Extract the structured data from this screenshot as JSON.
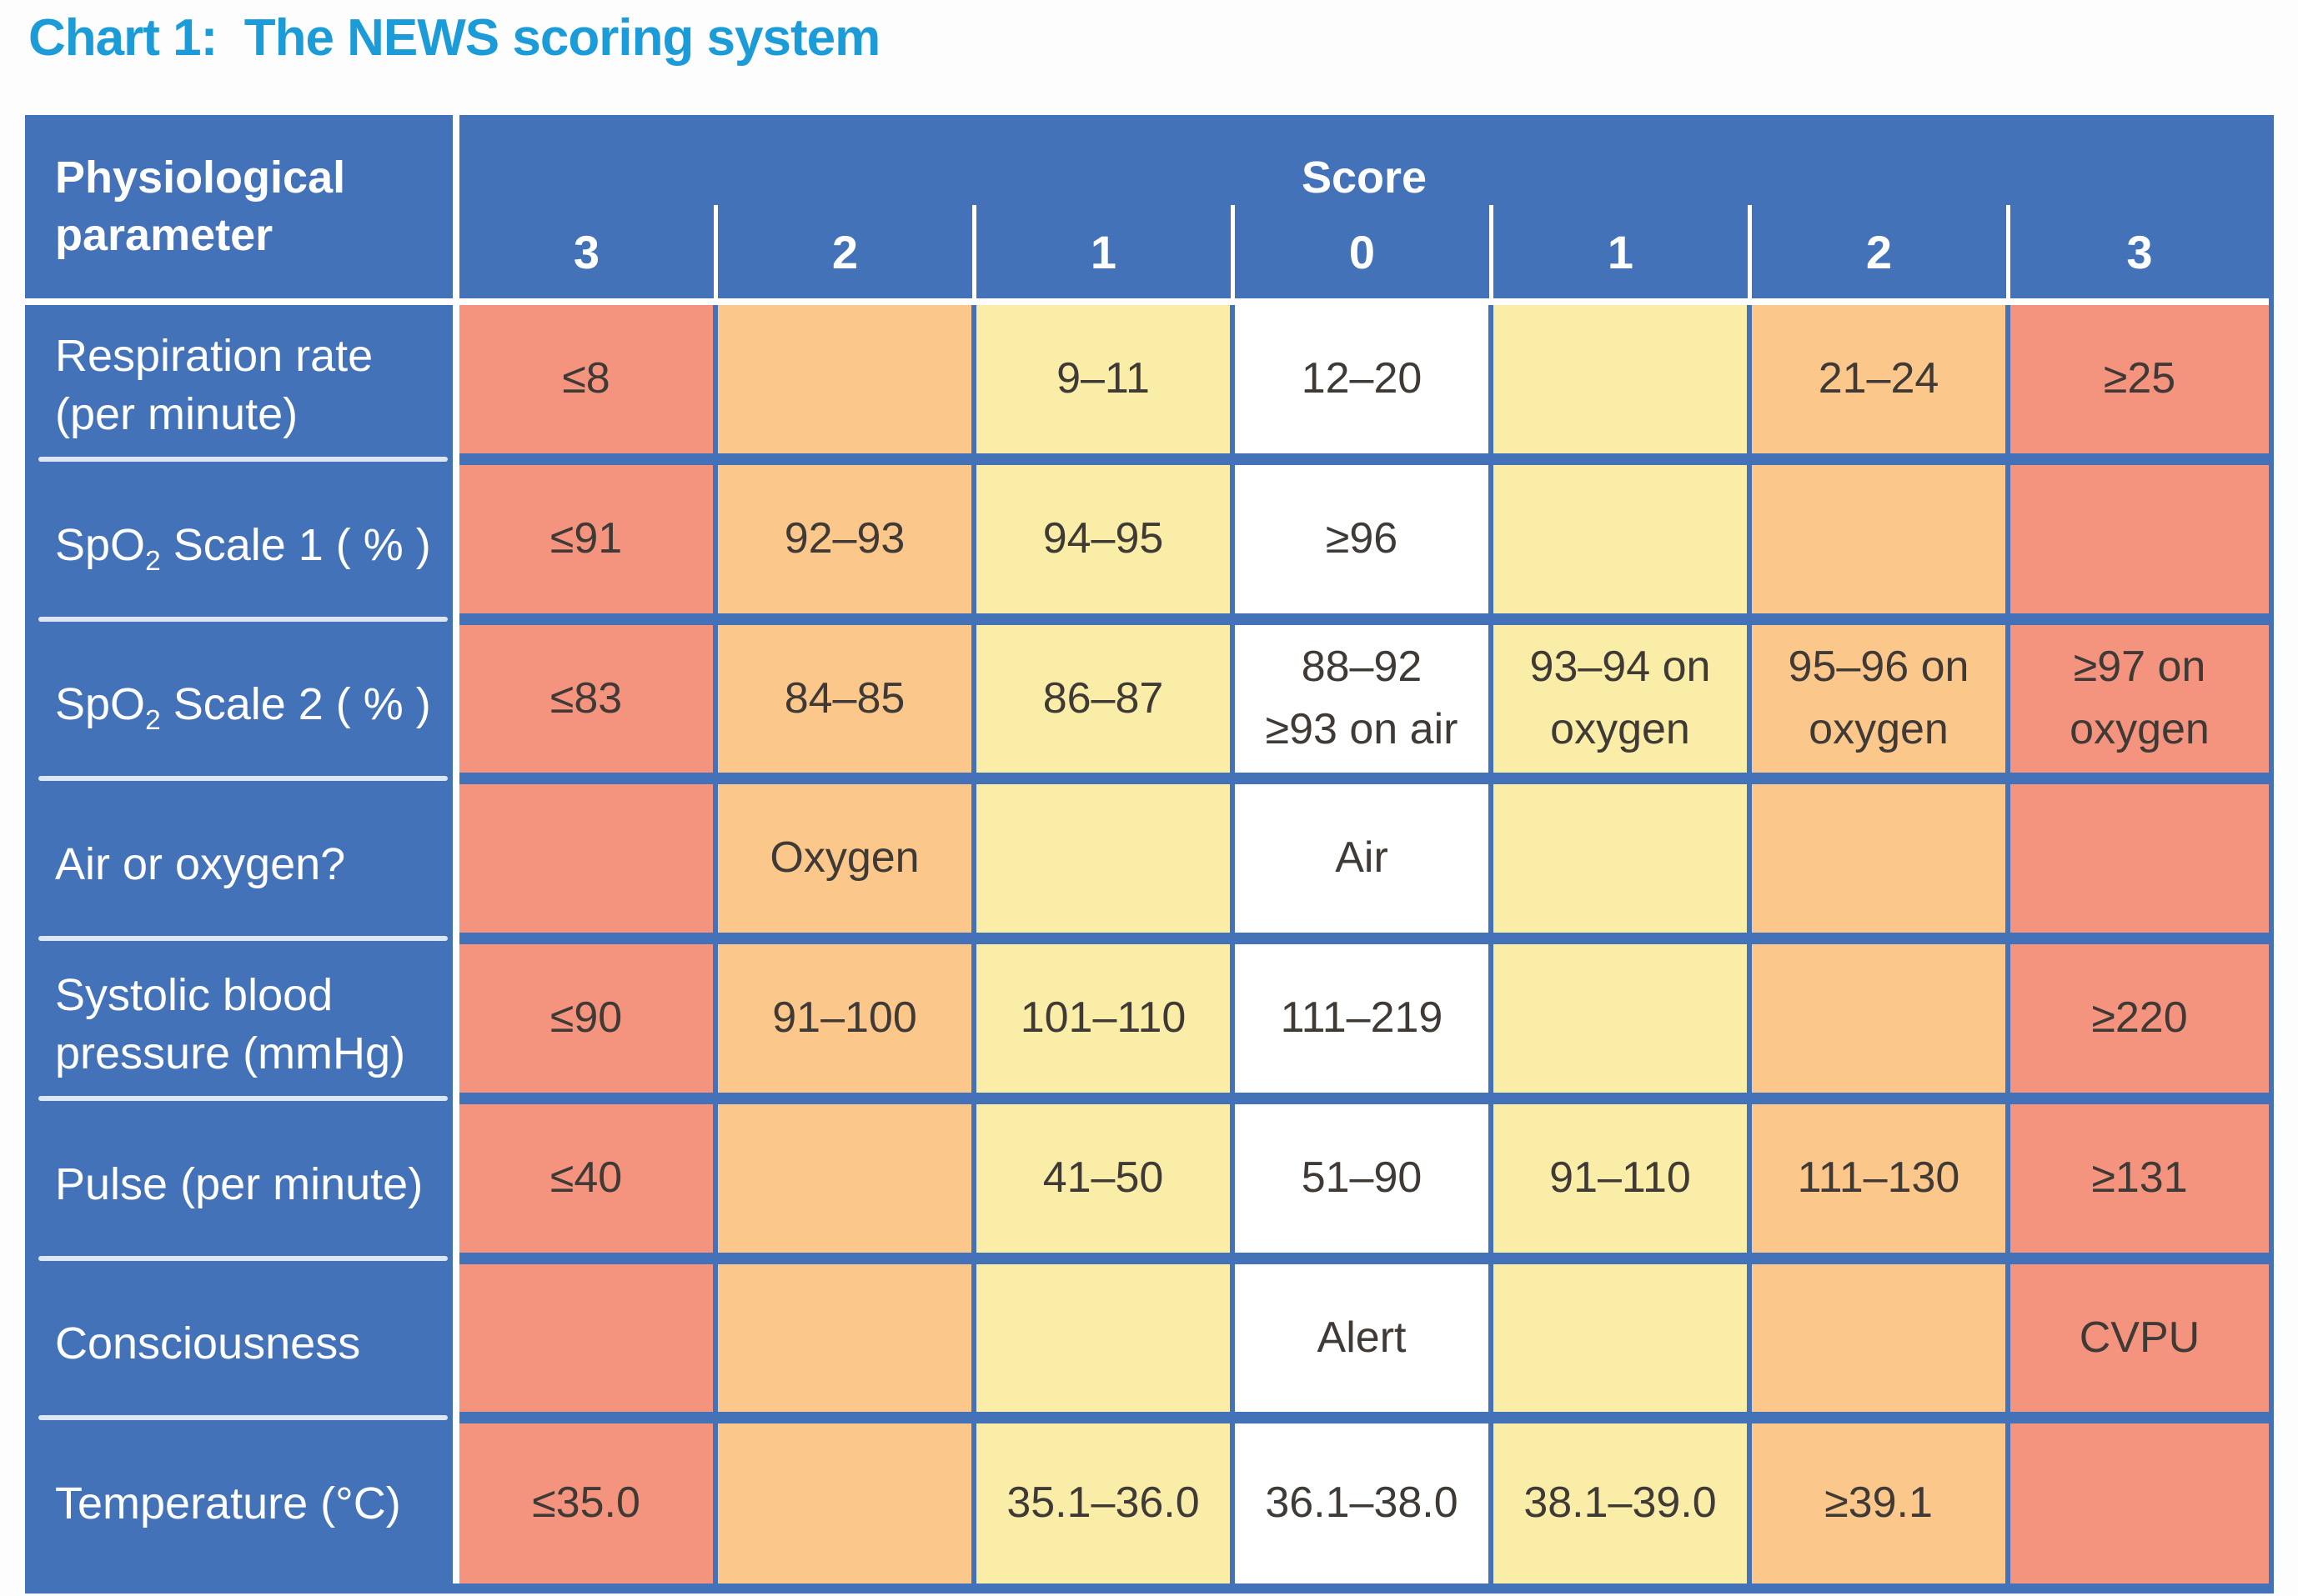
{
  "title": "Chart 1:  The NEWS scoring system",
  "colors": {
    "blue": "#4372b8",
    "red": "#f5947e",
    "orange": "#fcc78a",
    "yellow": "#f9eda7",
    "white": "#ffffff",
    "title": "#1b9cd8",
    "cell_text": "#3f3a36",
    "label_sep": "#dce6f4"
  },
  "table": {
    "corner_header": "Physiological parameter",
    "score_title": "Score",
    "score_numbers": [
      "3",
      "2",
      "1",
      "0",
      "1",
      "2",
      "3"
    ],
    "column_colors": [
      "red",
      "orange",
      "yellow",
      "white",
      "yellow",
      "orange",
      "red"
    ],
    "rows": [
      {
        "label_pre": "Respiration rate (per minute)",
        "label_sub": "",
        "label_post": "",
        "cells": [
          "≤8",
          "",
          "9–11",
          "12–20",
          "",
          "21–24",
          "≥25"
        ]
      },
      {
        "label_pre": "SpO",
        "label_sub": "2",
        "label_post": " Scale 1 ( % )",
        "cells": [
          "≤91",
          "92–93",
          "94–95",
          "≥96",
          "",
          "",
          ""
        ]
      },
      {
        "label_pre": "SpO",
        "label_sub": "2",
        "label_post": " Scale 2 ( % )",
        "cells": [
          "≤83",
          "84–85",
          "86–87",
          "88–92\n≥93 on air",
          "93–94 on oxygen",
          "95–96 on oxygen",
          "≥97 on oxygen"
        ]
      },
      {
        "label_pre": "Air or oxygen?",
        "label_sub": "",
        "label_post": "",
        "cells": [
          "",
          "Oxygen",
          "",
          "Air",
          "",
          "",
          ""
        ]
      },
      {
        "label_pre": "Systolic blood pressure (mmHg)",
        "label_sub": "",
        "label_post": "",
        "cells": [
          "≤90",
          "91–100",
          "101–110",
          "111–219",
          "",
          "",
          "≥220"
        ]
      },
      {
        "label_pre": "Pulse (per minute)",
        "label_sub": "",
        "label_post": "",
        "cells": [
          "≤40",
          "",
          "41–50",
          "51–90",
          "91–110",
          "111–130",
          "≥131"
        ]
      },
      {
        "label_pre": "Consciousness",
        "label_sub": "",
        "label_post": "",
        "cells": [
          "",
          "",
          "",
          "Alert",
          "",
          "",
          "CVPU"
        ]
      },
      {
        "label_pre": "Temperature (°C)",
        "label_sub": "",
        "label_post": "",
        "cells": [
          "≤35.0",
          "",
          "35.1–36.0",
          "36.1–38.0",
          "38.1–39.0",
          "≥39.1",
          ""
        ]
      }
    ]
  }
}
